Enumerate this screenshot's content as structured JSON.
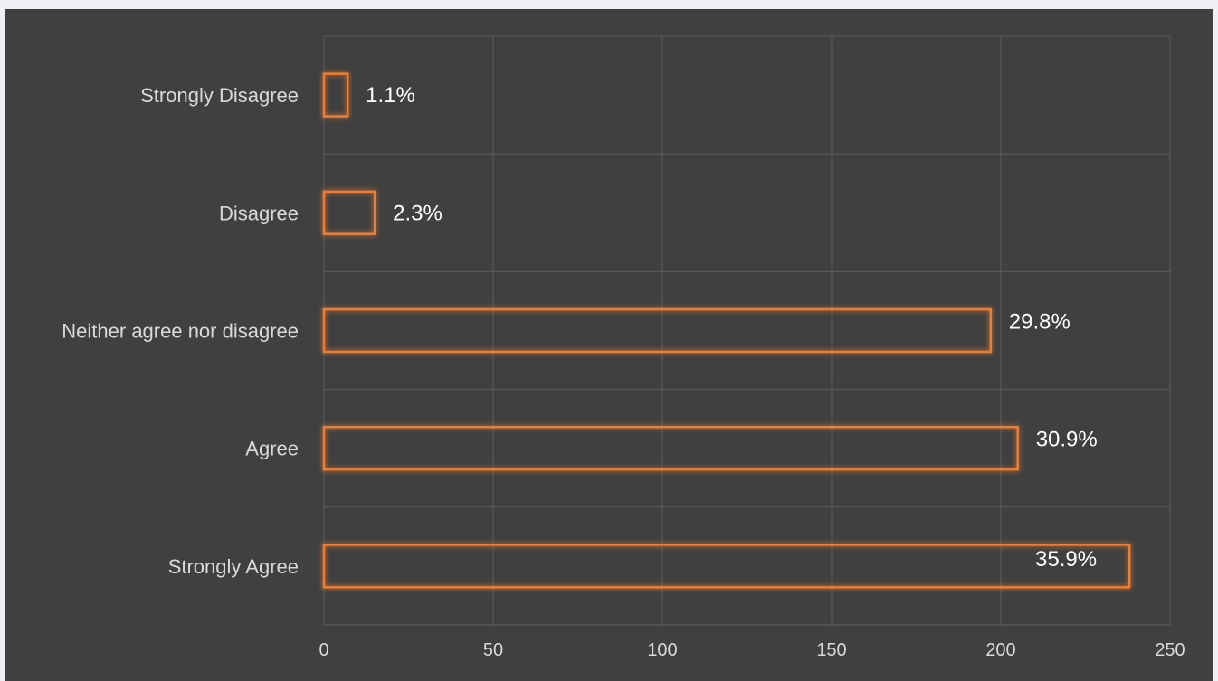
{
  "chart_data": {
    "type": "bar",
    "orientation": "horizontal",
    "categories": [
      "Strongly Disagree",
      "Disagree",
      "Neither agree nor disagree",
      "Agree",
      "Strongly Agree"
    ],
    "values": [
      7,
      15,
      197,
      205,
      238
    ],
    "data_labels": [
      "1.1%",
      "2.3%",
      "29.8%",
      "30.9%",
      "35.9%"
    ],
    "xlim": [
      0,
      250
    ],
    "x_ticks": [
      "0",
      "50",
      "100",
      "150",
      "200",
      "250"
    ],
    "grid": true,
    "legend": "none",
    "bar_outline_color": "#ed7d31",
    "background_color": "#404040"
  }
}
